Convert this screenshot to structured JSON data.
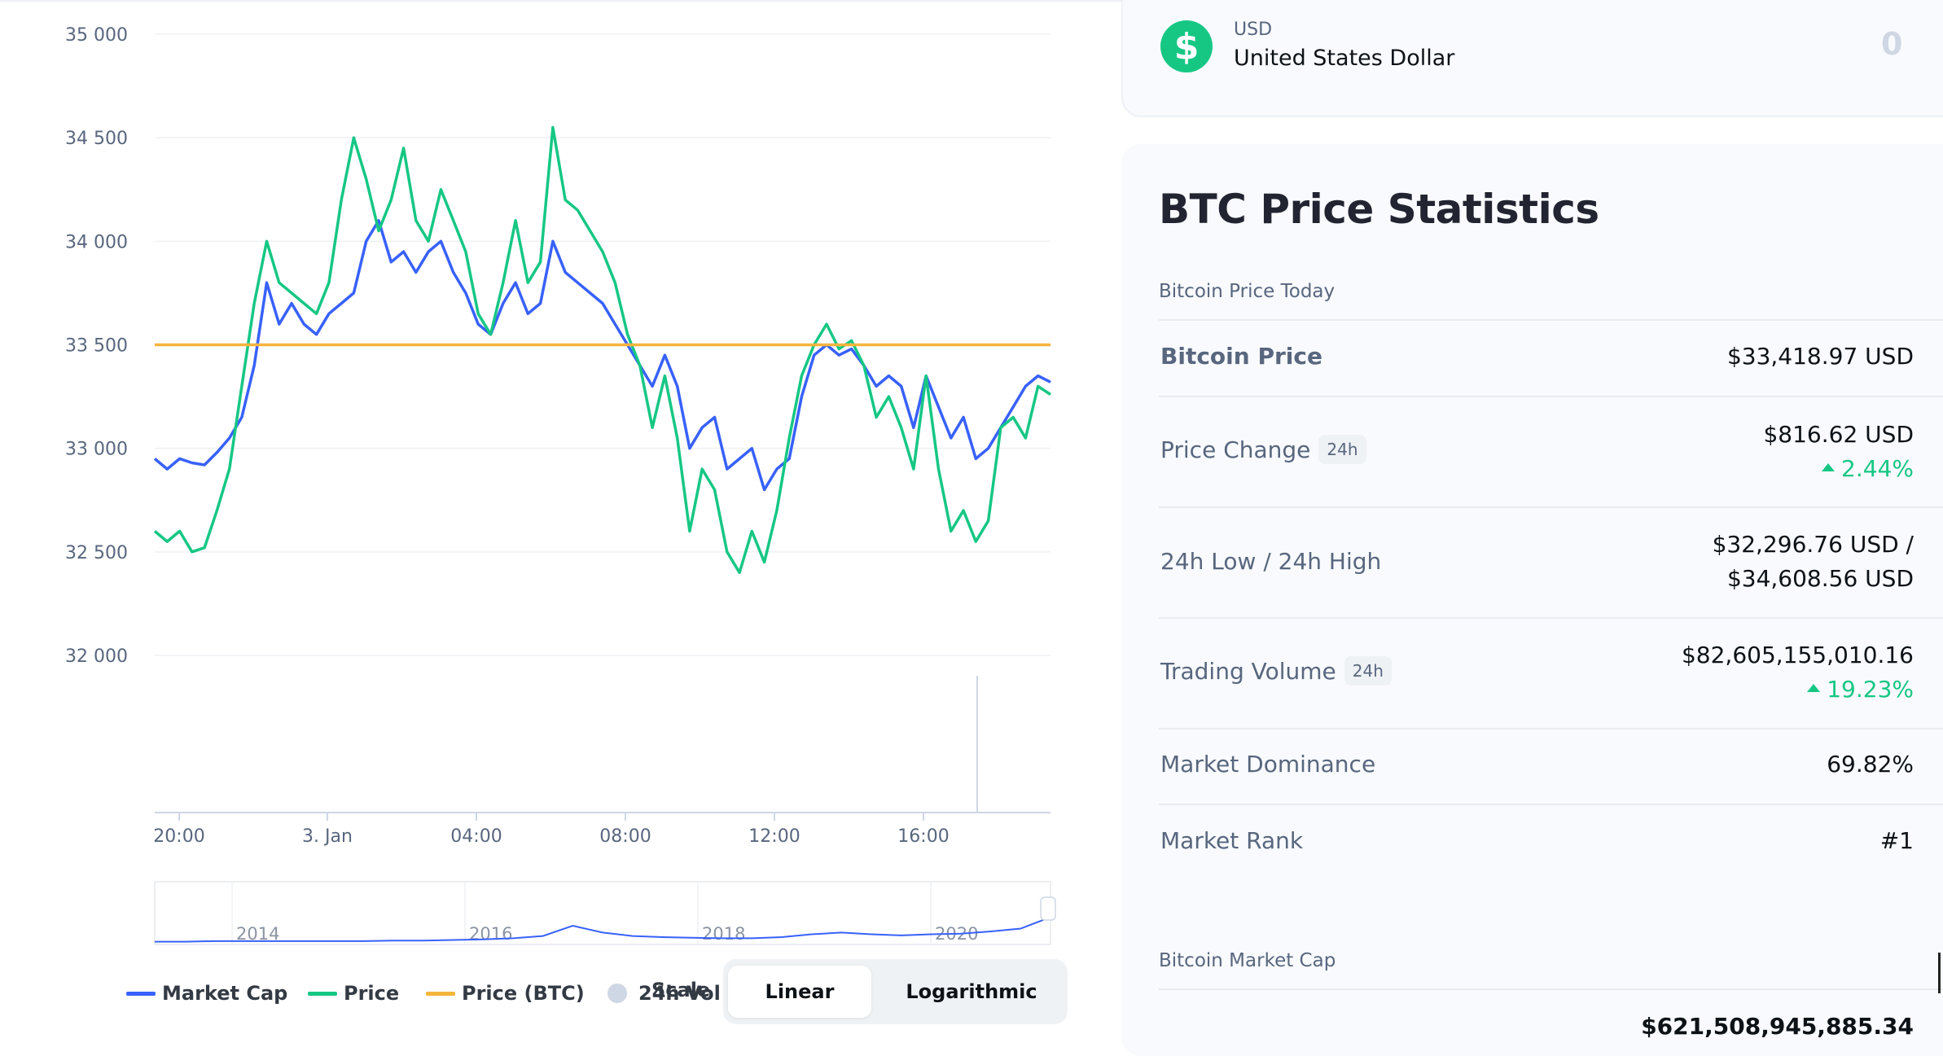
{
  "colors": {
    "market_cap": "#3861fb",
    "price": "#16c784",
    "price_btc": "#f5b43c",
    "vol": "#cfd6e4",
    "positive": "#16c784"
  },
  "currency": {
    "code": "USD",
    "name": "United States Dollar",
    "value": "0",
    "icon": "dollar-icon",
    "symbol": "$"
  },
  "stats": {
    "title": "BTC Price Statistics",
    "section_today": "Bitcoin Price Today",
    "rows": [
      {
        "label": "Bitcoin Price",
        "value": "$33,418.97 USD"
      },
      {
        "label": "Price Change",
        "badge": "24h",
        "value": "$816.62 USD",
        "change": "2.44%"
      },
      {
        "label": "24h Low / 24h High",
        "value_line1": "$32,296.76 USD /",
        "value_line2": "$34,608.56 USD"
      },
      {
        "label": "Trading Volume",
        "badge": "24h",
        "value": "$82,605,155,010.16",
        "change": "19.23%"
      },
      {
        "label": "Market Dominance",
        "value": "69.82%"
      },
      {
        "label": "Market Rank",
        "value": "#1"
      }
    ],
    "section_cap": "Bitcoin Market Cap",
    "cap_value": "$621,508,945,885.34"
  },
  "legend": {
    "market_cap": "Market Cap",
    "price": "Price",
    "price_btc": "Price (BTC)",
    "vol": "24h Vol"
  },
  "scale": {
    "label": "Scale",
    "options": [
      "Linear",
      "Logarithmic"
    ],
    "selected": "Linear"
  },
  "chart_data": {
    "type": "line",
    "y_ticks": [
      "35 000",
      "34 500",
      "34 000",
      "33 500",
      "33 000",
      "32 500",
      "32 000"
    ],
    "ylim": [
      32000,
      35000
    ],
    "x_ticks": [
      "20:00",
      "3. Jan",
      "04:00",
      "08:00",
      "12:00",
      "16:00"
    ],
    "x": [
      "19:20",
      "19:40",
      "20:00",
      "20:20",
      "20:40",
      "21:00",
      "21:20",
      "21:40",
      "22:00",
      "22:20",
      "22:40",
      "23:00",
      "23:20",
      "23:40",
      "00:00",
      "00:20",
      "00:40",
      "01:00",
      "01:20",
      "01:40",
      "02:00",
      "02:20",
      "02:40",
      "03:00",
      "03:20",
      "03:40",
      "04:00",
      "04:20",
      "04:40",
      "05:00",
      "05:20",
      "05:40",
      "06:00",
      "06:20",
      "06:40",
      "07:00",
      "07:20",
      "07:40",
      "08:00",
      "08:20",
      "08:40",
      "09:00",
      "09:20",
      "09:40",
      "10:00",
      "10:20",
      "10:40",
      "11:00",
      "11:20",
      "11:40",
      "12:00",
      "12:20",
      "12:40",
      "13:00",
      "13:20",
      "13:40",
      "14:00",
      "14:20",
      "14:40",
      "15:00",
      "15:20",
      "15:40",
      "16:00",
      "16:20",
      "16:40",
      "17:00",
      "17:20",
      "17:40",
      "18:00",
      "18:20",
      "18:40",
      "19:00",
      "19:10"
    ],
    "series": [
      {
        "name": "Market Cap",
        "axis_values": [
          32950,
          32900,
          32950,
          32930,
          32920,
          32980,
          33050,
          33150,
          33400,
          33800,
          33600,
          33700,
          33600,
          33550,
          33650,
          33700,
          33750,
          34000,
          34100,
          33900,
          33950,
          33850,
          33950,
          34000,
          33850,
          33750,
          33600,
          33550,
          33700,
          33800,
          33650,
          33700,
          34000,
          33850,
          33800,
          33750,
          33700,
          33600,
          33500,
          33400,
          33300,
          33450,
          33300,
          33000,
          33100,
          33150,
          32900,
          32950,
          33000,
          32800,
          32900,
          32950,
          33250,
          33450,
          33500,
          33450,
          33480,
          33400,
          33300,
          33350,
          33300,
          33100,
          33350,
          33200,
          33050,
          33150,
          32950,
          33000,
          33100,
          33200,
          33300,
          33350,
          33320
        ]
      },
      {
        "name": "Price",
        "axis_values": [
          32600,
          32550,
          32600,
          32500,
          32520,
          32700,
          32900,
          33300,
          33700,
          34000,
          33800,
          33750,
          33700,
          33650,
          33800,
          34200,
          34500,
          34300,
          34050,
          34200,
          34450,
          34100,
          34000,
          34250,
          34100,
          33950,
          33650,
          33550,
          33800,
          34100,
          33800,
          33900,
          34550,
          34200,
          34150,
          34050,
          33950,
          33800,
          33550,
          33400,
          33100,
          33350,
          33050,
          32600,
          32900,
          32800,
          32500,
          32400,
          32600,
          32450,
          32700,
          33050,
          33350,
          33500,
          33600,
          33480,
          33520,
          33400,
          33150,
          33250,
          33100,
          32900,
          33350,
          32900,
          32600,
          32700,
          32550,
          32650,
          33100,
          33150,
          33050,
          33300,
          33260
        ]
      },
      {
        "name": "Price (BTC)",
        "axis_values": [
          33500,
          33500
        ]
      }
    ],
    "navigator_x_ticks": [
      "2014",
      "2016",
      "2018",
      "2020"
    ]
  }
}
